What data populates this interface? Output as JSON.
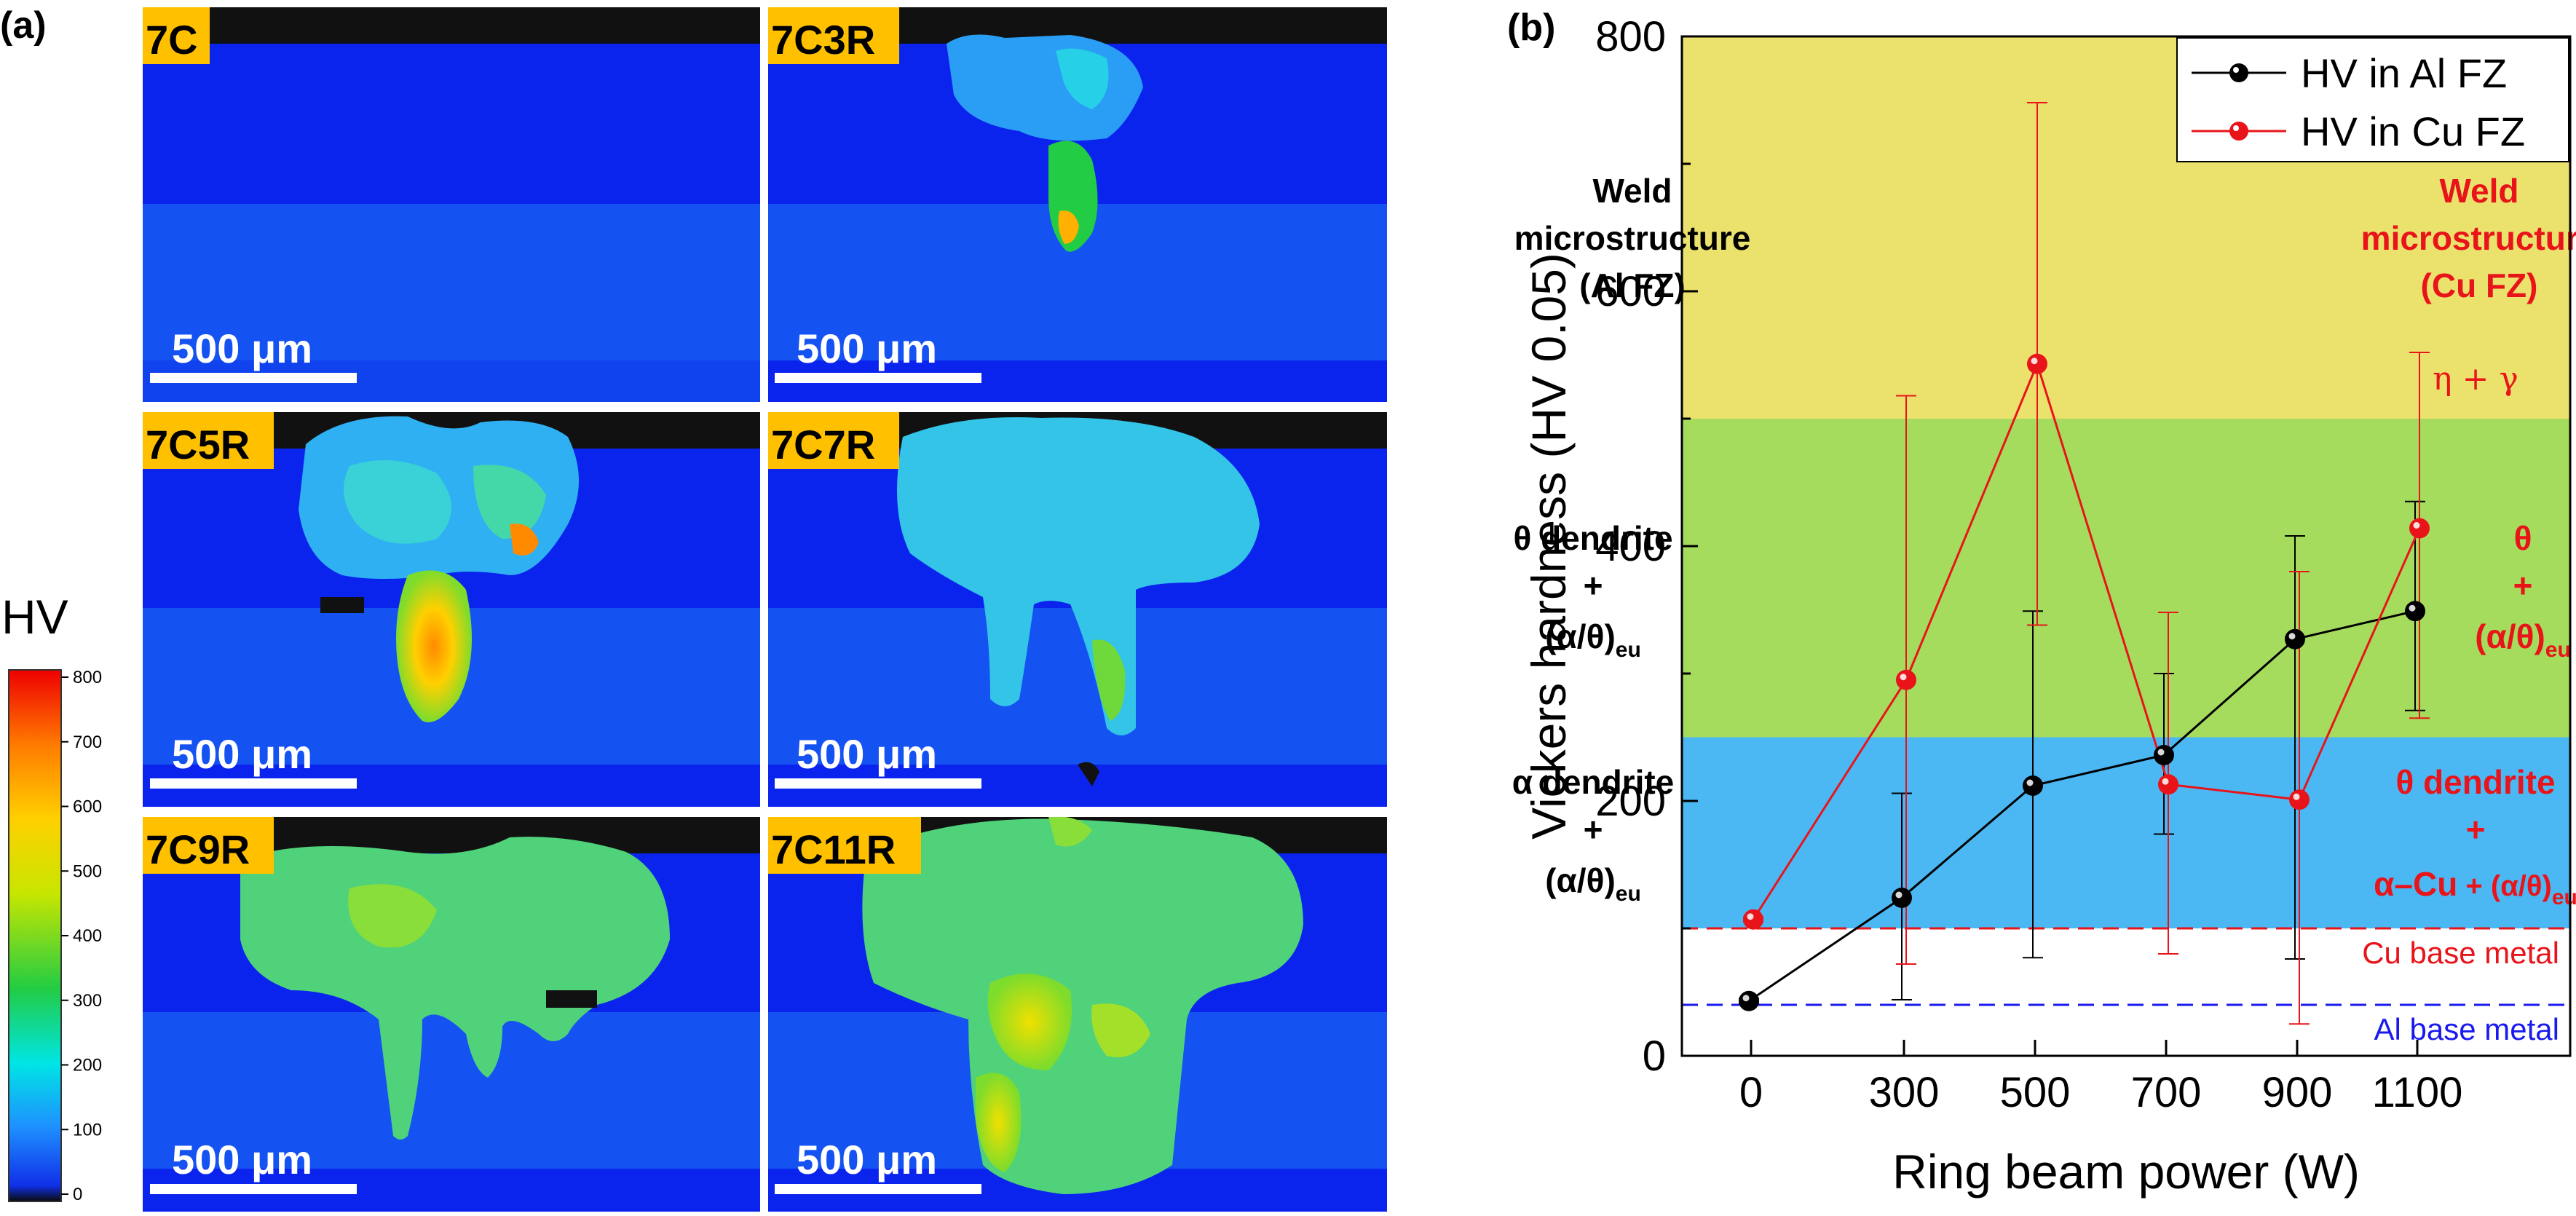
{
  "panel_a": {
    "letter": "(a)",
    "scale_bar_text": "500 μm",
    "maps": [
      {
        "label": "7C"
      },
      {
        "label": "7C3R"
      },
      {
        "label": "7C5R"
      },
      {
        "label": "7C7R"
      },
      {
        "label": "7C9R"
      },
      {
        "label": "7C11R"
      }
    ],
    "colorbar": {
      "title": "HV",
      "ticks": [
        "800",
        "700",
        "600",
        "500",
        "400",
        "300",
        "200",
        "100",
        "0"
      ],
      "colors": [
        "#0a0a0a",
        "#1030e8",
        "#1e90ff",
        "#00e5e5",
        "#22cc44",
        "#c8e600",
        "#ffd000",
        "#ff7a00",
        "#ee0000"
      ]
    }
  },
  "panel_b": {
    "letter": "(b)",
    "chart_data": {
      "type": "line",
      "xlabel": "Ring beam power (W)",
      "ylabel": "Vickers hardness (HV 0.05)",
      "categories": [
        "0",
        "300",
        "500",
        "700",
        "900",
        "1100"
      ],
      "ylim": [
        0,
        800
      ],
      "yticks": [
        "0",
        "200",
        "400",
        "600",
        "800"
      ],
      "series": [
        {
          "name": "HV in Al FZ",
          "color": "#000000",
          "values": [
            43,
            124,
            212,
            236,
            327,
            349
          ],
          "err_low": [
            41,
            44,
            77,
            174,
            76,
            271
          ],
          "err_high": [
            45,
            206,
            349,
            300,
            408,
            435
          ]
        },
        {
          "name": "HV in Cu FZ",
          "color": "#e8141a",
          "values": [
            107,
            295,
            543,
            213,
            201,
            414
          ],
          "err_low": [
            105,
            72,
            338,
            80,
            25,
            265
          ],
          "err_high": [
            109,
            518,
            748,
            348,
            380,
            552
          ]
        }
      ],
      "bands": [
        {
          "from": 500,
          "to": 800,
          "color": "#ebe26e"
        },
        {
          "from": 250,
          "to": 500,
          "color": "#a5dc5d"
        },
        {
          "from": 100,
          "to": 250,
          "color": "#4bb8f4"
        }
      ],
      "reference_lines": [
        {
          "value": 100,
          "label": "Cu base metal",
          "color": "#e8141a"
        },
        {
          "value": 40,
          "label": "Al base metal",
          "color": "#1a1aee"
        }
      ],
      "legend_position": "top-right",
      "annotations": {
        "left_header": [
          "Weld",
          "microstructure",
          "(Al FZ)"
        ],
        "right_header": [
          "Weld",
          "microstructure",
          "(Cu FZ)"
        ],
        "top_right_phase": "η + γ",
        "mid_left": {
          "line1": "θ dendrite",
          "plus": "+",
          "paren": "(α/θ)",
          "sub": "eu"
        },
        "mid_right": {
          "line1": "θ",
          "plus": "+",
          "paren": "(α/θ)",
          "sub": "eu"
        },
        "low_left": {
          "line1": "α dendrite",
          "plus": "+",
          "paren": "(α/θ)",
          "sub": "eu"
        },
        "low_right": {
          "line1": "θ dendrite",
          "plus": "+",
          "bold_part": "α–Cu",
          "plain_part": " + (α/θ)",
          "sub": "eu"
        }
      }
    }
  }
}
